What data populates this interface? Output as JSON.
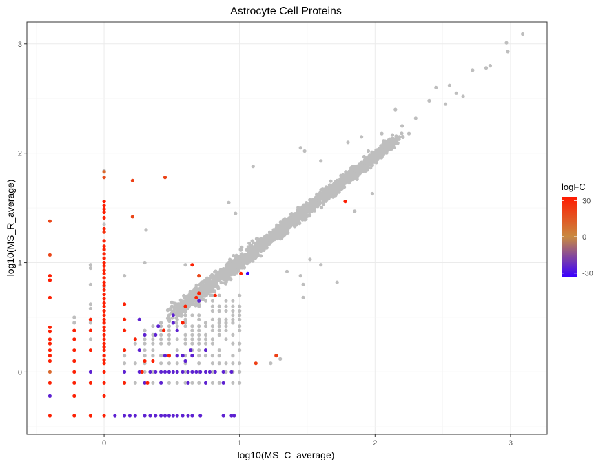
{
  "chart_data": {
    "type": "scatter",
    "title": "Astrocyte Cell Proteins",
    "xlabel": "log10(MS_C_average)",
    "ylabel": "log10(MS_R_average)",
    "xlim": [
      -0.57,
      3.27
    ],
    "ylim": [
      -0.57,
      3.2
    ],
    "xticks": [
      0,
      1,
      2,
      3
    ],
    "yticks": [
      0,
      1,
      2,
      3
    ],
    "grid": true,
    "legend": {
      "title": "logFC",
      "position": "right",
      "ticks": [
        30,
        0,
        -30
      ],
      "color_low": "#3a00ff",
      "color_mid": "#c98a40",
      "color_high": "#ff1a00",
      "range": [
        -33,
        33
      ]
    },
    "na_color": "#bebebe",
    "cloud": {
      "description_free": true,
      "intercept": 0.05,
      "slope": 0.96,
      "x_range": [
        0.5,
        2.15
      ]
    },
    "points": [
      {
        "x": 2.97,
        "y": 3.01,
        "c": null
      },
      {
        "x": 3.09,
        "y": 3.09,
        "c": null
      },
      {
        "x": 2.98,
        "y": 2.93,
        "c": null
      },
      {
        "x": 2.85,
        "y": 2.8,
        "c": null
      },
      {
        "x": 2.82,
        "y": 2.78,
        "c": null
      },
      {
        "x": 2.72,
        "y": 2.76,
        "c": null
      },
      {
        "x": 2.6,
        "y": 2.55,
        "c": null
      },
      {
        "x": 2.65,
        "y": 2.52,
        "c": null
      },
      {
        "x": 2.55,
        "y": 2.62,
        "c": null
      },
      {
        "x": 2.45,
        "y": 2.6,
        "c": null
      },
      {
        "x": 2.52,
        "y": 2.45,
        "c": null
      },
      {
        "x": 2.4,
        "y": 2.48,
        "c": null
      },
      {
        "x": 2.3,
        "y": 2.32,
        "c": null
      },
      {
        "x": 2.2,
        "y": 2.25,
        "c": null
      },
      {
        "x": 2.15,
        "y": 2.4,
        "c": null
      },
      {
        "x": 2.25,
        "y": 2.18,
        "c": null
      },
      {
        "x": 2.1,
        "y": 2.12,
        "c": null
      },
      {
        "x": 2.05,
        "y": 2.18,
        "c": null
      },
      {
        "x": 1.95,
        "y": 2.02,
        "c": null
      },
      {
        "x": 1.9,
        "y": 2.15,
        "c": null
      },
      {
        "x": 1.8,
        "y": 2.1,
        "c": null
      },
      {
        "x": 1.45,
        "y": 2.05,
        "c": null
      },
      {
        "x": 1.48,
        "y": 2.02,
        "c": null
      },
      {
        "x": 1.6,
        "y": 1.93,
        "c": null
      },
      {
        "x": 1.1,
        "y": 1.88,
        "c": null
      },
      {
        "x": 1.98,
        "y": 1.63,
        "c": null
      },
      {
        "x": 1.85,
        "y": 1.47,
        "c": null
      },
      {
        "x": 1.6,
        "y": 0.98,
        "c": null
      },
      {
        "x": 1.52,
        "y": 1.03,
        "c": null
      },
      {
        "x": 1.72,
        "y": 0.82,
        "c": null
      },
      {
        "x": 1.47,
        "y": 0.8,
        "c": null
      },
      {
        "x": 1.47,
        "y": 0.68,
        "c": null
      },
      {
        "x": 1.35,
        "y": 0.92,
        "c": null
      },
      {
        "x": 1.45,
        "y": 0.88,
        "c": null
      },
      {
        "x": 1.23,
        "y": 0.08,
        "c": null
      },
      {
        "x": 1.3,
        "y": 0.12,
        "c": null
      },
      {
        "x": 0.92,
        "y": 1.55,
        "c": null
      },
      {
        "x": 0.97,
        "y": 1.45,
        "c": null
      },
      {
        "x": 0.6,
        "y": 0.98,
        "c": null
      },
      {
        "x": 0.31,
        "y": 1.3,
        "c": null
      },
      {
        "x": 0.3,
        "y": 1.0,
        "c": null
      },
      {
        "x": 0.15,
        "y": 0.88,
        "c": null
      },
      {
        "x": -0.1,
        "y": 0.98,
        "c": null
      },
      {
        "x": -0.1,
        "y": 0.95,
        "c": null
      },
      {
        "x": -0.1,
        "y": 0.8,
        "c": null
      },
      {
        "x": -0.1,
        "y": 0.62,
        "c": null
      },
      {
        "x": -0.1,
        "y": 0.58,
        "c": null
      },
      {
        "x": -0.1,
        "y": 0.45,
        "c": null
      },
      {
        "x": -0.1,
        "y": 0.3,
        "c": null
      },
      {
        "x": -0.22,
        "y": 0.5,
        "c": null
      },
      {
        "x": -0.22,
        "y": 0.45,
        "c": null
      },
      {
        "x": 0.0,
        "y": 1.84,
        "c": null
      },
      {
        "x": 0.0,
        "y": 1.35,
        "c": null
      },
      {
        "x": 0.0,
        "y": 0.78,
        "c": null
      },
      {
        "x": 0.0,
        "y": 1.56,
        "c": 33
      },
      {
        "x": 0.0,
        "y": 1.52,
        "c": 32
      },
      {
        "x": 0.0,
        "y": 1.49,
        "c": 32
      },
      {
        "x": 0.0,
        "y": 1.46,
        "c": 31
      },
      {
        "x": 0.0,
        "y": 1.41,
        "c": 31
      },
      {
        "x": 0.0,
        "y": 1.31,
        "c": 30
      },
      {
        "x": 0.0,
        "y": 1.28,
        "c": 26
      },
      {
        "x": 0.0,
        "y": 1.2,
        "c": 31
      },
      {
        "x": 0.0,
        "y": 1.15,
        "c": 31
      },
      {
        "x": 0.0,
        "y": 1.12,
        "c": 31
      },
      {
        "x": 0.0,
        "y": 1.08,
        "c": 30
      },
      {
        "x": 0.0,
        "y": 1.04,
        "c": 31
      },
      {
        "x": 0.0,
        "y": 1.0,
        "c": 31
      },
      {
        "x": 0.0,
        "y": 0.97,
        "c": 31
      },
      {
        "x": 0.0,
        "y": 0.93,
        "c": 31
      },
      {
        "x": 0.0,
        "y": 0.9,
        "c": 31
      },
      {
        "x": 0.0,
        "y": 0.86,
        "c": 31
      },
      {
        "x": 0.0,
        "y": 0.82,
        "c": 31
      },
      {
        "x": 0.0,
        "y": 0.79,
        "c": 31
      },
      {
        "x": 0.0,
        "y": 0.75,
        "c": 31
      },
      {
        "x": 0.0,
        "y": 0.71,
        "c": 31
      },
      {
        "x": 0.0,
        "y": 0.67,
        "c": 31
      },
      {
        "x": 0.0,
        "y": 0.63,
        "c": 31
      },
      {
        "x": 0.0,
        "y": 0.6,
        "c": 31
      },
      {
        "x": 0.0,
        "y": 0.56,
        "c": 31
      },
      {
        "x": 0.0,
        "y": 0.52,
        "c": 31
      },
      {
        "x": 0.0,
        "y": 0.48,
        "c": 31
      },
      {
        "x": 0.0,
        "y": 0.45,
        "c": 31
      },
      {
        "x": 0.0,
        "y": 0.41,
        "c": 31
      },
      {
        "x": 0.0,
        "y": 0.38,
        "c": 31
      },
      {
        "x": 0.0,
        "y": 0.34,
        "c": 31
      },
      {
        "x": 0.0,
        "y": 0.3,
        "c": 31
      },
      {
        "x": 0.0,
        "y": 0.26,
        "c": 31
      },
      {
        "x": 0.0,
        "y": 0.23,
        "c": 31
      },
      {
        "x": 0.0,
        "y": 0.2,
        "c": 31
      },
      {
        "x": 0.0,
        "y": 0.15,
        "c": 31
      },
      {
        "x": 0.0,
        "y": 0.11,
        "c": 31
      },
      {
        "x": 0.0,
        "y": 0.08,
        "c": 31
      },
      {
        "x": 0.0,
        "y": 0.0,
        "c": 31
      },
      {
        "x": 0.0,
        "y": -0.1,
        "c": 31
      },
      {
        "x": 0.0,
        "y": -0.22,
        "c": 31
      },
      {
        "x": 0.0,
        "y": -0.4,
        "c": 31
      },
      {
        "x": 0.0,
        "y": 1.78,
        "c": 18
      },
      {
        "x": 0.0,
        "y": 1.83,
        "c": 10
      },
      {
        "x": -0.4,
        "y": 1.38,
        "c": 20
      },
      {
        "x": -0.4,
        "y": 1.07,
        "c": 20
      },
      {
        "x": -0.4,
        "y": 0.88,
        "c": 32
      },
      {
        "x": -0.4,
        "y": 0.84,
        "c": 32
      },
      {
        "x": -0.4,
        "y": 0.68,
        "c": 31
      },
      {
        "x": -0.4,
        "y": 0.41,
        "c": 31
      },
      {
        "x": -0.4,
        "y": 0.37,
        "c": 31
      },
      {
        "x": -0.4,
        "y": 0.3,
        "c": 31
      },
      {
        "x": -0.4,
        "y": 0.26,
        "c": 31
      },
      {
        "x": -0.4,
        "y": 0.2,
        "c": 31
      },
      {
        "x": -0.4,
        "y": 0.15,
        "c": 31
      },
      {
        "x": -0.4,
        "y": 0.1,
        "c": 31
      },
      {
        "x": -0.4,
        "y": 0.0,
        "c": 10
      },
      {
        "x": -0.4,
        "y": -0.1,
        "c": 31
      },
      {
        "x": -0.4,
        "y": -0.22,
        "c": -25
      },
      {
        "x": -0.4,
        "y": -0.4,
        "c": 31
      },
      {
        "x": -0.22,
        "y": 0.38,
        "c": 31
      },
      {
        "x": -0.22,
        "y": 0.3,
        "c": 31
      },
      {
        "x": -0.22,
        "y": 0.2,
        "c": 31
      },
      {
        "x": -0.22,
        "y": 0.1,
        "c": 31
      },
      {
        "x": -0.22,
        "y": 0.0,
        "c": 31
      },
      {
        "x": -0.22,
        "y": -0.1,
        "c": 31
      },
      {
        "x": -0.22,
        "y": -0.22,
        "c": 31
      },
      {
        "x": -0.22,
        "y": -0.4,
        "c": 31
      },
      {
        "x": -0.1,
        "y": 0.48,
        "c": 31
      },
      {
        "x": -0.1,
        "y": 0.38,
        "c": 31
      },
      {
        "x": -0.1,
        "y": 0.2,
        "c": 31
      },
      {
        "x": -0.1,
        "y": 0.0,
        "c": -25
      },
      {
        "x": -0.1,
        "y": -0.1,
        "c": 31
      },
      {
        "x": -0.1,
        "y": -0.4,
        "c": 31
      },
      {
        "x": 0.15,
        "y": 0.62,
        "c": 31
      },
      {
        "x": 0.15,
        "y": 0.48,
        "c": 31
      },
      {
        "x": 0.15,
        "y": 0.38,
        "c": 31
      },
      {
        "x": 0.15,
        "y": 0.2,
        "c": 31
      },
      {
        "x": 0.15,
        "y": 0.0,
        "c": -25
      },
      {
        "x": 0.15,
        "y": -0.1,
        "c": 31
      },
      {
        "x": 0.15,
        "y": -0.4,
        "c": -25
      },
      {
        "x": 0.21,
        "y": 1.75,
        "c": 22
      },
      {
        "x": 0.21,
        "y": 1.42,
        "c": 20
      },
      {
        "x": 0.45,
        "y": 1.78,
        "c": 21
      },
      {
        "x": 0.23,
        "y": 0.3,
        "c": 31
      },
      {
        "x": 0.23,
        "y": -0.4,
        "c": -25
      },
      {
        "x": 0.26,
        "y": 0.48,
        "c": -25
      },
      {
        "x": 0.26,
        "y": 0.2,
        "c": -25
      },
      {
        "x": 0.26,
        "y": 0.0,
        "c": -25
      },
      {
        "x": 0.3,
        "y": 0.34,
        "c": -25
      },
      {
        "x": 0.3,
        "y": 0.1,
        "c": 31
      },
      {
        "x": 0.3,
        "y": -0.1,
        "c": -25
      },
      {
        "x": 0.3,
        "y": -0.4,
        "c": -25
      },
      {
        "x": 0.34,
        "y": 0.0,
        "c": -25
      },
      {
        "x": 0.34,
        "y": -0.4,
        "c": -25
      },
      {
        "x": 0.38,
        "y": 0.34,
        "c": -25
      },
      {
        "x": 0.38,
        "y": 0.0,
        "c": -25
      },
      {
        "x": 0.38,
        "y": -0.4,
        "c": -25
      },
      {
        "x": 0.42,
        "y": 0.0,
        "c": -25
      },
      {
        "x": 0.42,
        "y": -0.1,
        "c": -25
      },
      {
        "x": 0.42,
        "y": -0.4,
        "c": -25
      },
      {
        "x": 0.45,
        "y": 0.15,
        "c": -25
      },
      {
        "x": 0.45,
        "y": 0.0,
        "c": -25
      },
      {
        "x": 0.45,
        "y": -0.4,
        "c": -25
      },
      {
        "x": 0.48,
        "y": 0.15,
        "c": 31
      },
      {
        "x": 0.48,
        "y": 0.0,
        "c": -25
      },
      {
        "x": 0.48,
        "y": -0.4,
        "c": -25
      },
      {
        "x": 0.51,
        "y": 0.52,
        "c": -25
      },
      {
        "x": 0.51,
        "y": 0.45,
        "c": -25
      },
      {
        "x": 0.51,
        "y": 0.0,
        "c": -25
      },
      {
        "x": 0.51,
        "y": -0.4,
        "c": -25
      },
      {
        "x": 0.54,
        "y": 0.38,
        "c": -25
      },
      {
        "x": 0.54,
        "y": 0.15,
        "c": -25
      },
      {
        "x": 0.54,
        "y": 0.0,
        "c": -25
      },
      {
        "x": 0.54,
        "y": -0.4,
        "c": -25
      },
      {
        "x": 0.58,
        "y": 0.45,
        "c": 31
      },
      {
        "x": 0.58,
        "y": 0.15,
        "c": -25
      },
      {
        "x": 0.58,
        "y": 0.0,
        "c": -25
      },
      {
        "x": 0.58,
        "y": -0.4,
        "c": -25
      },
      {
        "x": 0.6,
        "y": 0.6,
        "c": 31
      },
      {
        "x": 0.62,
        "y": 0.0,
        "c": -25
      },
      {
        "x": 0.62,
        "y": -0.1,
        "c": -25
      },
      {
        "x": 0.62,
        "y": -0.4,
        "c": -25
      },
      {
        "x": 0.65,
        "y": 0.98,
        "c": 31
      },
      {
        "x": 0.65,
        "y": 0.15,
        "c": -25
      },
      {
        "x": 0.65,
        "y": 0.0,
        "c": -25
      },
      {
        "x": 0.65,
        "y": -0.4,
        "c": -25
      },
      {
        "x": 0.68,
        "y": 0.0,
        "c": -25
      },
      {
        "x": 0.68,
        "y": 0.68,
        "c": 31
      },
      {
        "x": 0.7,
        "y": 0.72,
        "c": 31
      },
      {
        "x": 0.7,
        "y": 0.65,
        "c": -25
      },
      {
        "x": 0.7,
        "y": 0.88,
        "c": 20
      },
      {
        "x": 0.71,
        "y": 0.0,
        "c": -25
      },
      {
        "x": 0.71,
        "y": -0.4,
        "c": -25
      },
      {
        "x": 0.75,
        "y": 0.0,
        "c": -25
      },
      {
        "x": 0.75,
        "y": -0.1,
        "c": -25
      },
      {
        "x": 0.78,
        "y": 0.0,
        "c": -25
      },
      {
        "x": 0.82,
        "y": 0.0,
        "c": -25
      },
      {
        "x": 0.82,
        "y": 0.7,
        "c": 31
      },
      {
        "x": 0.75,
        "y": 0.2,
        "c": -25
      },
      {
        "x": 0.88,
        "y": 0.0,
        "c": -25
      },
      {
        "x": 0.94,
        "y": 0.0,
        "c": -25
      },
      {
        "x": 0.88,
        "y": -0.1,
        "c": -25
      },
      {
        "x": 0.88,
        "y": -0.4,
        "c": -25
      },
      {
        "x": 0.94,
        "y": -0.4,
        "c": -25
      },
      {
        "x": 0.96,
        "y": -0.4,
        "c": -25
      },
      {
        "x": 1.01,
        "y": 0.9,
        "c": 31
      },
      {
        "x": 1.06,
        "y": 0.9,
        "c": -33
      },
      {
        "x": 0.4,
        "y": 0.42,
        "c": -25
      },
      {
        "x": 0.44,
        "y": 0.38,
        "c": 31
      },
      {
        "x": 0.28,
        "y": 0.0,
        "c": 31
      },
      {
        "x": 0.32,
        "y": -0.1,
        "c": 31
      },
      {
        "x": 0.36,
        "y": 0.1,
        "c": 31
      },
      {
        "x": 0.6,
        "y": 0.1,
        "c": -25
      },
      {
        "x": 0.64,
        "y": 0.2,
        "c": -25
      },
      {
        "x": 1.78,
        "y": 1.56,
        "c": 32
      },
      {
        "x": 1.27,
        "y": 0.15,
        "c": 22
      },
      {
        "x": 1.12,
        "y": 0.08,
        "c": 22
      },
      {
        "x": -0.1,
        "y": -0.4,
        "c": 31
      },
      {
        "x": 0.08,
        "y": -0.4,
        "c": -25
      },
      {
        "x": 0.19,
        "y": -0.4,
        "c": -25
      }
    ]
  }
}
